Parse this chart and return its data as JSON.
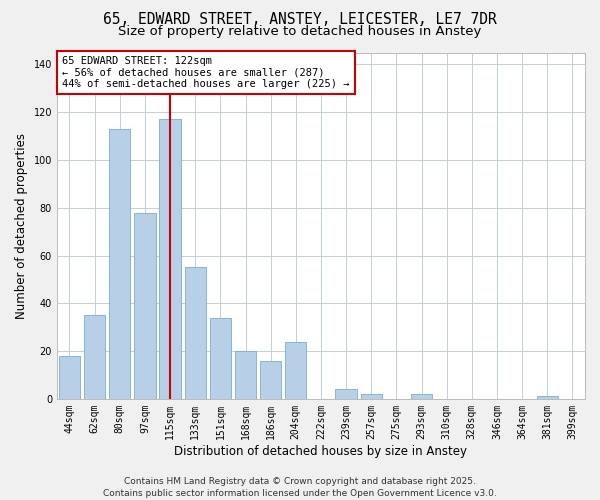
{
  "title": "65, EDWARD STREET, ANSTEY, LEICESTER, LE7 7DR",
  "subtitle": "Size of property relative to detached houses in Anstey",
  "xlabel": "Distribution of detached houses by size in Anstey",
  "ylabel": "Number of detached properties",
  "bar_labels": [
    "44sqm",
    "62sqm",
    "80sqm",
    "97sqm",
    "115sqm",
    "133sqm",
    "151sqm",
    "168sqm",
    "186sqm",
    "204sqm",
    "222sqm",
    "239sqm",
    "257sqm",
    "275sqm",
    "293sqm",
    "310sqm",
    "328sqm",
    "346sqm",
    "364sqm",
    "381sqm",
    "399sqm"
  ],
  "bar_values": [
    18,
    35,
    113,
    78,
    117,
    55,
    34,
    20,
    16,
    24,
    0,
    4,
    2,
    0,
    2,
    0,
    0,
    0,
    0,
    1,
    0
  ],
  "bar_color": "#b8cfe8",
  "bar_edge_color": "#7aadd4",
  "vline_color": "#cc0000",
  "vline_x_index": 4,
  "ylim": [
    0,
    145
  ],
  "yticks": [
    0,
    20,
    40,
    60,
    80,
    100,
    120,
    140
  ],
  "annotation_title": "65 EDWARD STREET: 122sqm",
  "annotation_line1": "← 56% of detached houses are smaller (287)",
  "annotation_line2": "44% of semi-detached houses are larger (225) →",
  "footer_line1": "Contains HM Land Registry data © Crown copyright and database right 2025.",
  "footer_line2": "Contains public sector information licensed under the Open Government Licence v3.0.",
  "bg_color": "#f0f0f0",
  "plot_bg_color": "#ffffff",
  "grid_color": "#c0d0e0",
  "title_fontsize": 10.5,
  "subtitle_fontsize": 9.5,
  "axis_label_fontsize": 8.5,
  "tick_fontsize": 7,
  "annotation_fontsize": 7.5,
  "footer_fontsize": 6.5
}
